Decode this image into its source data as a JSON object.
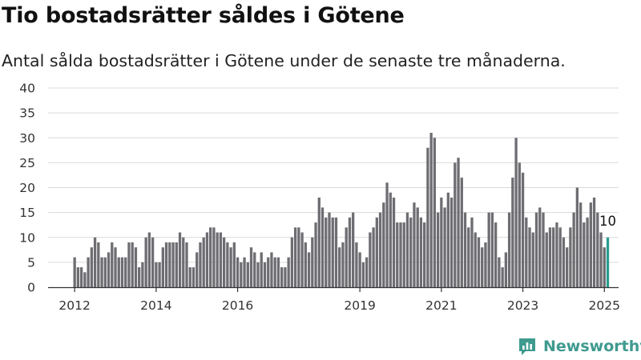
{
  "header": {
    "title": "Tio bostadsrätter såldes i Götene",
    "subtitle": "Antal sålda bostadsrätter i Götene under de senaste tre månaderna."
  },
  "brand": {
    "name": "Newsworthy",
    "icon": "newsworthy-logo-icon",
    "color": "#3f9a8f"
  },
  "colors": {
    "bar": "#6e6d72",
    "highlight": "#2a9d8f",
    "grid": "#d9d9d9",
    "axis": "#333333"
  },
  "chart_data": {
    "type": "bar",
    "title": "Tio bostadsrätter såldes i Götene",
    "subtitle": "Antal sålda bostadsrätter i Götene under de senaste tre månaderna.",
    "xlabel": "",
    "ylabel": "",
    "ylim": [
      0,
      40
    ],
    "yticks": [
      0,
      5,
      10,
      15,
      20,
      25,
      30,
      35,
      40
    ],
    "grid": true,
    "legend": "none",
    "x_start": "2012-01",
    "x_ticks": [
      {
        "label": "2012",
        "date": "2012-01"
      },
      {
        "label": "2014",
        "date": "2014-01"
      },
      {
        "label": "2016",
        "date": "2016-01"
      },
      {
        "label": "2019",
        "date": "2019-01"
      },
      {
        "label": "2021",
        "date": "2021-01"
      },
      {
        "label": "2023",
        "date": "2023-01"
      },
      {
        "label": "2025",
        "date": "2025-01"
      }
    ],
    "values": [
      6,
      4,
      4,
      3,
      6,
      8,
      10,
      9,
      6,
      6,
      7,
      9,
      8,
      6,
      6,
      6,
      9,
      9,
      8,
      4,
      5,
      10,
      11,
      10,
      5,
      5,
      8,
      9,
      9,
      9,
      9,
      11,
      10,
      9,
      4,
      4,
      7,
      9,
      10,
      11,
      12,
      12,
      11,
      11,
      10,
      9,
      8,
      9,
      6,
      5,
      6,
      5,
      8,
      7,
      5,
      7,
      5,
      6,
      7,
      6,
      6,
      4,
      4,
      6,
      10,
      12,
      12,
      11,
      9,
      7,
      10,
      13,
      18,
      16,
      14,
      15,
      14,
      14,
      8,
      9,
      12,
      14,
      15,
      9,
      7,
      5,
      6,
      11,
      12,
      14,
      15,
      17,
      21,
      19,
      18,
      13,
      13,
      13,
      15,
      14,
      17,
      16,
      14,
      13,
      28,
      31,
      30,
      15,
      18,
      16,
      19,
      18,
      25,
      26,
      22,
      15,
      12,
      14,
      11,
      10,
      8,
      9,
      15,
      15,
      13,
      6,
      4,
      7,
      15,
      22,
      30,
      25,
      23,
      14,
      12,
      11,
      15,
      16,
      15,
      11,
      12,
      12,
      13,
      12,
      10,
      8,
      12,
      15,
      20,
      17,
      13,
      14,
      17,
      18,
      15,
      11,
      8,
      10
    ],
    "highlight_last": true,
    "annotation": {
      "label": "10",
      "value": 10
    }
  }
}
